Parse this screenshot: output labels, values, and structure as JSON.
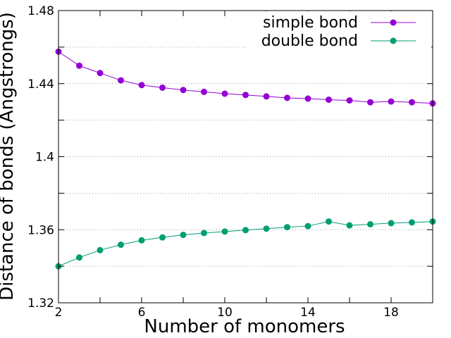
{
  "chart_data": {
    "type": "line",
    "title": "",
    "xlabel": "Number of monomers",
    "ylabel": "Distance of bonds (Angstrongs)",
    "xlim": [
      2,
      20
    ],
    "ylim": [
      1.32,
      1.48
    ],
    "xticks": [
      2,
      6,
      10,
      14,
      18
    ],
    "xtick_labels": [
      "2",
      "6",
      "10",
      "14",
      "18"
    ],
    "yticks": [
      1.32,
      1.34,
      1.36,
      1.38,
      1.4,
      1.42,
      1.44,
      1.46,
      1.48
    ],
    "ytick_labels": [
      "1.32",
      "",
      "1.36",
      "",
      "1.4",
      "",
      "1.44",
      "",
      "1.48"
    ],
    "grid": "horizontal-dotted",
    "legend_position": "top-right",
    "series": [
      {
        "name": "simple bond",
        "color": "#9400d3",
        "x": [
          2,
          3,
          4,
          5,
          6,
          7,
          8,
          9,
          10,
          11,
          12,
          13,
          14,
          15,
          16,
          17,
          18,
          19,
          20
        ],
        "values": [
          1.4575,
          1.4498,
          1.4458,
          1.4418,
          1.4392,
          1.4378,
          1.4365,
          1.4355,
          1.4345,
          1.4338,
          1.433,
          1.4322,
          1.4318,
          1.4312,
          1.4308,
          1.4298,
          1.4302,
          1.4298,
          1.4292
        ]
      },
      {
        "name": "double bond",
        "color": "#009e73",
        "x": [
          2,
          3,
          4,
          5,
          6,
          7,
          8,
          9,
          10,
          11,
          12,
          13,
          14,
          15,
          16,
          17,
          18,
          19,
          20
        ],
        "values": [
          1.34,
          1.3448,
          1.3488,
          1.3518,
          1.3542,
          1.3558,
          1.3572,
          1.3582,
          1.359,
          1.3598,
          1.3606,
          1.3614,
          1.362,
          1.3645,
          1.3624,
          1.363,
          1.3636,
          1.364,
          1.3645
        ]
      }
    ]
  }
}
